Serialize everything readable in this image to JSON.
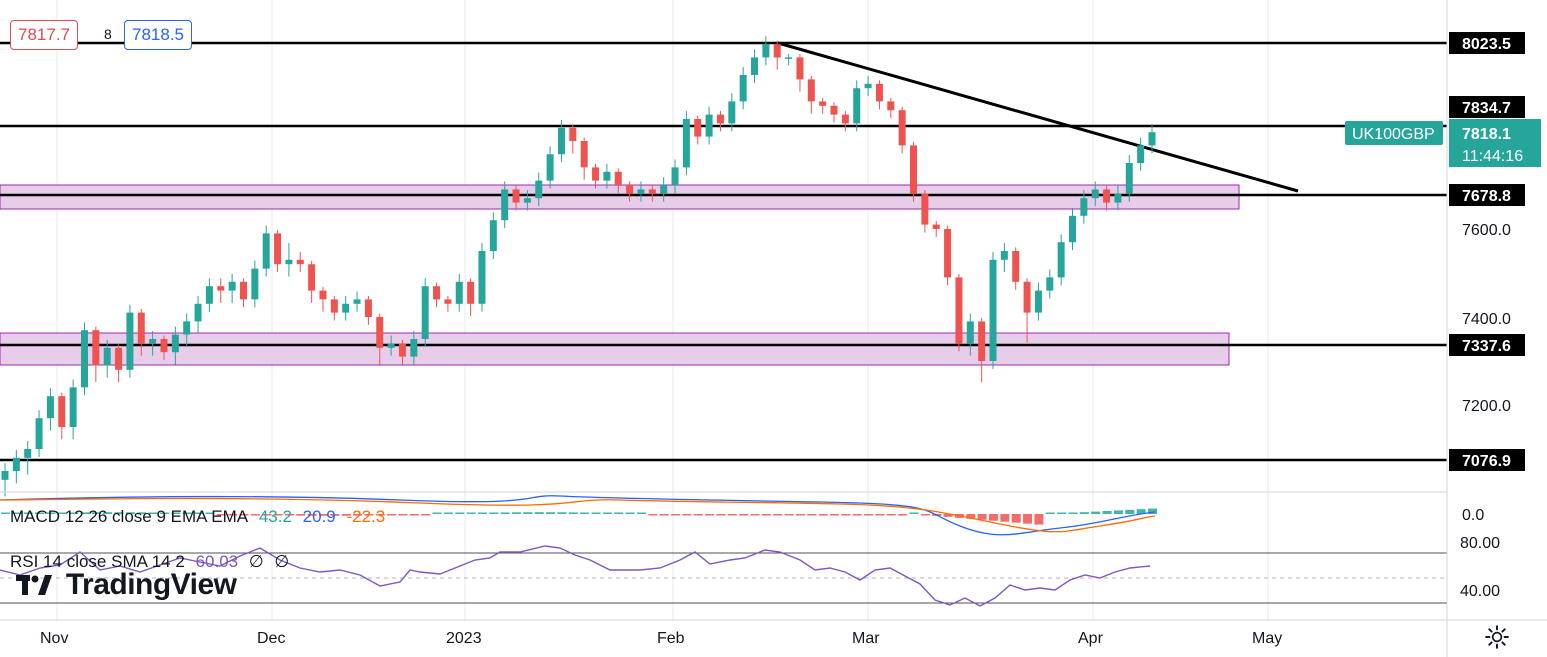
{
  "quote": {
    "bid": "7817.7",
    "spread": "8",
    "ask": "7818.5"
  },
  "symbol_label": {
    "name": "UK100GBP",
    "price": "7818.1",
    "countdown": "11:44:16"
  },
  "price_axis": {
    "ticks": [
      "8023.5",
      "7834.7",
      "7678.8",
      "7600.0",
      "7400.0",
      "7337.6",
      "7200.0",
      "7076.9"
    ],
    "boxed": [
      "8023.5",
      "7834.7",
      "7678.8",
      "7337.6",
      "7076.9"
    ]
  },
  "time_axis": [
    "Nov",
    "Dec",
    "2023",
    "Feb",
    "Mar",
    "Apr",
    "May"
  ],
  "macd": {
    "title": "MACD 12 26 close 9 EMA EMA",
    "values": [
      "43.2",
      "20.9",
      "-22.3"
    ],
    "colors": [
      "#26a69a",
      "#2962ff",
      "#ff6d00"
    ],
    "axis_label": "0.0"
  },
  "rsi": {
    "title": "RSI 14 close SMA 14 2",
    "value": "60.03",
    "extra": [
      "∅",
      "∅"
    ],
    "color": "#7e57c2",
    "axis_labels": [
      "80.00",
      "40.00"
    ]
  },
  "brand": {
    "name": "TradingView"
  },
  "icons": {
    "settings": "gear-icon",
    "logo": "tradingview-logo-icon"
  },
  "colors": {
    "up": "#26a69a",
    "down": "#ef5350",
    "zone_fill": "#e1bee7",
    "zone_border": "#9c27b0",
    "line": "#000000"
  },
  "chart_data": {
    "type": "candlestick",
    "symbol": "UK100GBP",
    "last_price": 7818.1,
    "horizontal_levels": [
      8023.5,
      7834.7,
      7678.8,
      7337.6,
      7076.9
    ],
    "zones": [
      [
        7650,
        7705
      ],
      [
        7300,
        7375
      ]
    ],
    "trendline": {
      "from": [
        "Feb 14",
        8025
      ],
      "to": [
        "Apr 25",
        7690
      ]
    },
    "candles_approx": [
      [
        7030,
        7060,
        7000,
        7050
      ],
      [
        7050,
        7090,
        7030,
        7080
      ],
      [
        7080,
        7110,
        7050,
        7100
      ],
      [
        7100,
        7180,
        7090,
        7170
      ],
      [
        7170,
        7230,
        7150,
        7220
      ],
      [
        7220,
        7180,
        7130,
        7150
      ],
      [
        7150,
        7250,
        7130,
        7240
      ],
      [
        7240,
        7380,
        7230,
        7370
      ],
      [
        7370,
        7310,
        7260,
        7290
      ],
      [
        7290,
        7340,
        7270,
        7330
      ],
      [
        7330,
        7290,
        7260,
        7280
      ],
      [
        7280,
        7420,
        7270,
        7410
      ],
      [
        7410,
        7350,
        7320,
        7340
      ],
      [
        7340,
        7360,
        7320,
        7350
      ],
      [
        7350,
        7330,
        7310,
        7320
      ],
      [
        7320,
        7370,
        7300,
        7360
      ],
      [
        7360,
        7400,
        7340,
        7390
      ],
      [
        7390,
        7440,
        7370,
        7430
      ],
      [
        7430,
        7480,
        7420,
        7470
      ],
      [
        7470,
        7480,
        7440,
        7460
      ],
      [
        7460,
        7490,
        7440,
        7480
      ],
      [
        7480,
        7460,
        7430,
        7440
      ],
      [
        7440,
        7520,
        7430,
        7510
      ],
      [
        7510,
        7600,
        7500,
        7590
      ],
      [
        7590,
        7540,
        7510,
        7520
      ],
      [
        7520,
        7560,
        7500,
        7530
      ],
      [
        7530,
        7540,
        7510,
        7520
      ],
      [
        7520,
        7460,
        7440,
        7460
      ],
      [
        7460,
        7440,
        7420,
        7440
      ],
      [
        7440,
        7410,
        7400,
        7410
      ],
      [
        7410,
        7440,
        7400,
        7430
      ],
      [
        7430,
        7450,
        7420,
        7440
      ],
      [
        7440,
        7410,
        7390,
        7400
      ],
      [
        7400,
        7360,
        7300,
        7330
      ],
      [
        7330,
        7350,
        7320,
        7340
      ],
      [
        7340,
        7320,
        7300,
        7310
      ],
      [
        7310,
        7360,
        7300,
        7350
      ],
      [
        7350,
        7480,
        7340,
        7470
      ],
      [
        7470,
        7440,
        7430,
        7440
      ],
      [
        7440,
        7430,
        7420,
        7430
      ],
      [
        7430,
        7490,
        7420,
        7480
      ],
      [
        7480,
        7440,
        7410,
        7430
      ],
      [
        7430,
        7560,
        7420,
        7550
      ],
      [
        7550,
        7630,
        7540,
        7620
      ],
      [
        7620,
        7700,
        7610,
        7690
      ],
      [
        7690,
        7660,
        7650,
        7660
      ],
      [
        7660,
        7680,
        7650,
        7670
      ],
      [
        7670,
        7720,
        7660,
        7710
      ],
      [
        7710,
        7780,
        7700,
        7770
      ],
      [
        7770,
        7840,
        7760,
        7830
      ],
      [
        7830,
        7800,
        7780,
        7800
      ],
      [
        7800,
        7760,
        7720,
        7740
      ],
      [
        7740,
        7720,
        7700,
        7710
      ],
      [
        7710,
        7740,
        7700,
        7730
      ],
      [
        7730,
        7700,
        7690,
        7700
      ],
      [
        7700,
        7680,
        7670,
        7680
      ],
      [
        7680,
        7700,
        7670,
        7690
      ],
      [
        7690,
        7680,
        7670,
        7680
      ],
      [
        7680,
        7710,
        7670,
        7700
      ],
      [
        7700,
        7750,
        7690,
        7740
      ],
      [
        7740,
        7860,
        7730,
        7850
      ],
      [
        7850,
        7820,
        7800,
        7810
      ],
      [
        7810,
        7870,
        7800,
        7860
      ],
      [
        7860,
        7850,
        7830,
        7840
      ],
      [
        7840,
        7900,
        7830,
        7890
      ],
      [
        7890,
        7960,
        7880,
        7950
      ],
      [
        7950,
        8000,
        7940,
        7990
      ],
      [
        7990,
        8030,
        7980,
        8020
      ],
      [
        8020,
        8000,
        7970,
        7990
      ],
      [
        7990,
        7990,
        7980,
        7990
      ],
      [
        7990,
        7940,
        7920,
        7940
      ],
      [
        7940,
        7900,
        7870,
        7890
      ],
      [
        7890,
        7880,
        7870,
        7880
      ],
      [
        7880,
        7870,
        7850,
        7860
      ],
      [
        7860,
        7840,
        7830,
        7840
      ],
      [
        7840,
        7930,
        7830,
        7920
      ],
      [
        7920,
        7940,
        7910,
        7930
      ],
      [
        7930,
        7900,
        7880,
        7890
      ],
      [
        7890,
        7870,
        7860,
        7870
      ],
      [
        7870,
        7800,
        7780,
        7790
      ],
      [
        7790,
        7680,
        7670,
        7680
      ],
      [
        7680,
        7620,
        7600,
        7610
      ],
      [
        7610,
        7600,
        7590,
        7600
      ],
      [
        7600,
        7500,
        7480,
        7490
      ],
      [
        7490,
        7350,
        7330,
        7340
      ],
      [
        7340,
        7400,
        7320,
        7390
      ],
      [
        7390,
        7320,
        7260,
        7300
      ],
      [
        7300,
        7540,
        7290,
        7530
      ],
      [
        7530,
        7560,
        7510,
        7550
      ],
      [
        7550,
        7480,
        7470,
        7480
      ],
      [
        7480,
        7410,
        7350,
        7410
      ],
      [
        7410,
        7470,
        7400,
        7460
      ],
      [
        7460,
        7500,
        7450,
        7490
      ],
      [
        7490,
        7580,
        7480,
        7570
      ],
      [
        7570,
        7640,
        7560,
        7630
      ],
      [
        7630,
        7680,
        7620,
        7670
      ],
      [
        7670,
        7700,
        7660,
        7690
      ],
      [
        7690,
        7660,
        7650,
        7660
      ],
      [
        7660,
        7690,
        7650,
        7680
      ],
      [
        7680,
        7760,
        7670,
        7750
      ],
      [
        7750,
        7800,
        7740,
        7790
      ],
      [
        7790,
        7830,
        7780,
        7820
      ]
    ]
  }
}
